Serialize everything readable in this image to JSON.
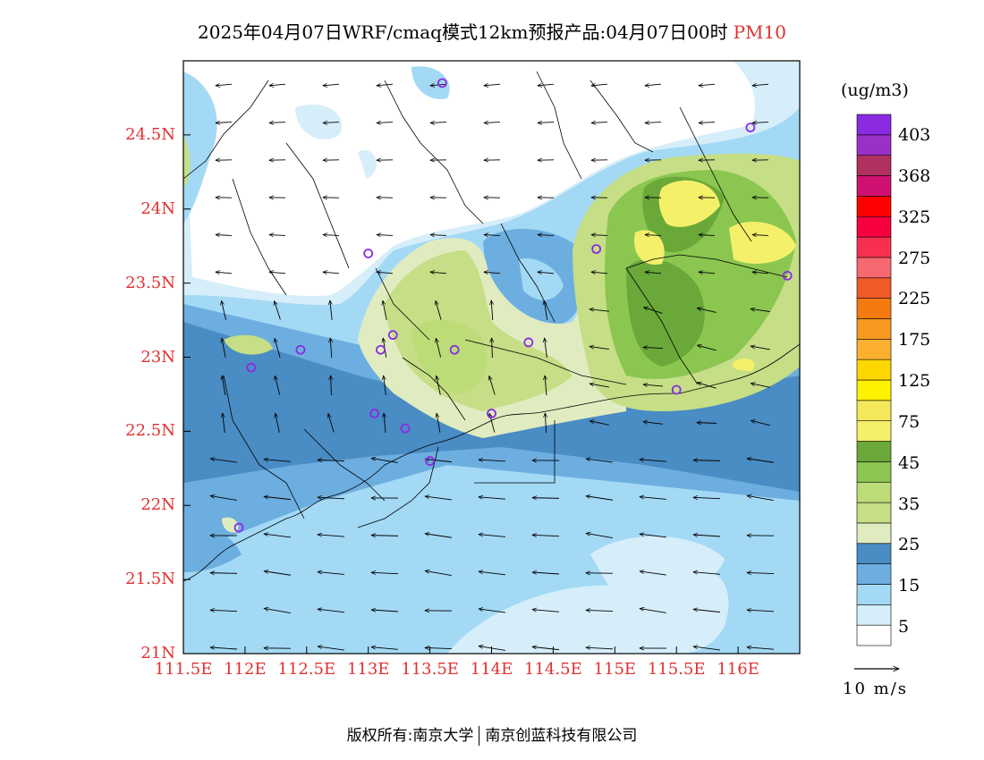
{
  "title": {
    "text": "2025年04月07日WRF/cmaq模式12km预报产品:04月07日00时",
    "pollutant": "PM10"
  },
  "map": {
    "lat_labels": [
      "24.5N",
      "24N",
      "23.5N",
      "23N",
      "22.5N",
      "22N",
      "21.5N",
      "21N"
    ],
    "lon_labels": [
      "111.5E",
      "112E",
      "112.5E",
      "113E",
      "113.5E",
      "114E",
      "114.5E",
      "115E",
      "115.5E",
      "116E"
    ],
    "lat_range": [
      21,
      25
    ],
    "lon_range": [
      111.5,
      116.5
    ],
    "stations": [
      {
        "lon": 113.6,
        "lat": 24.85
      },
      {
        "lon": 116.1,
        "lat": 24.55
      },
      {
        "lon": 113.0,
        "lat": 23.7
      },
      {
        "lon": 114.85,
        "lat": 23.73
      },
      {
        "lon": 116.4,
        "lat": 23.55
      },
      {
        "lon": 113.2,
        "lat": 23.15
      },
      {
        "lon": 113.1,
        "lat": 23.05
      },
      {
        "lon": 112.45,
        "lat": 23.05
      },
      {
        "lon": 113.7,
        "lat": 23.05
      },
      {
        "lon": 114.3,
        "lat": 23.1
      },
      {
        "lon": 112.05,
        "lat": 22.93
      },
      {
        "lon": 115.5,
        "lat": 22.78
      },
      {
        "lon": 113.05,
        "lat": 22.62
      },
      {
        "lon": 114.0,
        "lat": 22.62
      },
      {
        "lon": 113.3,
        "lat": 22.52
      },
      {
        "lon": 113.5,
        "lat": 22.3
      },
      {
        "lon": 111.95,
        "lat": 21.85
      }
    ],
    "station_color": "#8a2be2",
    "wind_note": "prevailing easterly to southeasterly flow",
    "colors": {
      "white": "#ffffff",
      "c5": "#d6eefa",
      "c15": "#a3d9f5",
      "c20": "#6caedf",
      "c25": "#4a8cc4",
      "c30": "#e0ecc0",
      "c35": "#c6de86",
      "c45": "#8bc650",
      "c55": "#6aa83a",
      "c75": "#f4f06a"
    }
  },
  "colorbar": {
    "unit": "(ug/m3)",
    "labels": [
      "403",
      "368",
      "325",
      "275",
      "225",
      "175",
      "125",
      "75",
      "45",
      "35",
      "25",
      "15",
      "5"
    ],
    "colors": [
      "#ffffff",
      "#d6eefa",
      "#a3d9f5",
      "#6caedf",
      "#4a8cc4",
      "#e0ecc0",
      "#c6de86",
      "#bcdc78",
      "#8bc650",
      "#6aa83a",
      "#f4f06a",
      "#f4e85a",
      "#fff200",
      "#ffd700",
      "#fbb030",
      "#f89a20",
      "#f47a10",
      "#f05a28",
      "#f86870",
      "#f83050",
      "#f80040",
      "#ff0000",
      "#d01070",
      "#b03060",
      "#9b30c8",
      "#8a2be2"
    ]
  },
  "reference_vector": {
    "label": "10 m/s"
  },
  "footer": {
    "left": "版权所有:南京大学",
    "right": "南京创蓝科技有限公司"
  }
}
